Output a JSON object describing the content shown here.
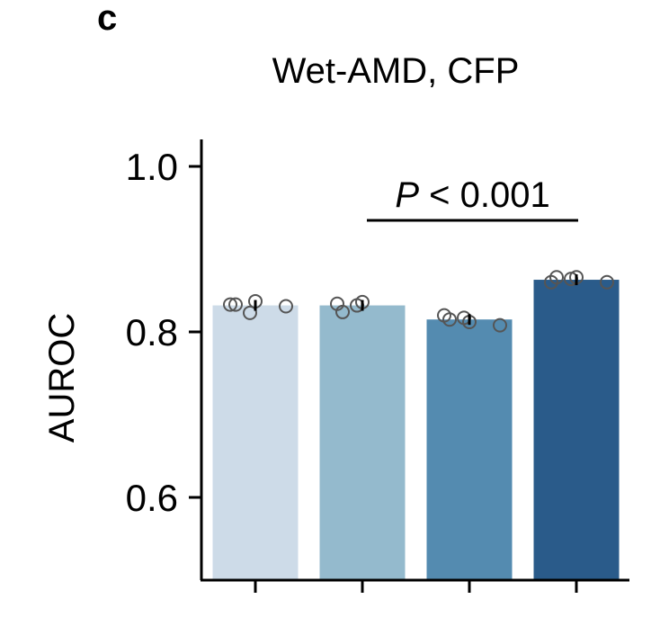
{
  "panel_label": "c",
  "chart_data": {
    "type": "bar",
    "title": "Wet-AMD, CFP",
    "xlabel": "",
    "ylabel": "AUROC",
    "ylim": [
      0.5,
      1.03
    ],
    "yticks": [
      0.6,
      0.8,
      1.0
    ],
    "ytick_labels": [
      "0.6",
      "0.8",
      "1.0"
    ],
    "categories": [
      "",
      "",
      "",
      ""
    ],
    "values": [
      0.832,
      0.832,
      0.815,
      0.863
    ],
    "colors": [
      "#cddbe8",
      "#94bacd",
      "#548bb0",
      "#2a5b8a"
    ],
    "points": [
      [
        0.833,
        0.833,
        0.837,
        0.823,
        0.831
      ],
      [
        0.834,
        0.824,
        0.836,
        0.832
      ],
      [
        0.82,
        0.815,
        0.812,
        0.817,
        0.808
      ],
      [
        0.86,
        0.866,
        0.866,
        0.864,
        0.86
      ]
    ],
    "annotation": {
      "text_italic": "P",
      "text_rest": " < 0.001",
      "from_bar": 1,
      "to_bar": 3
    }
  }
}
